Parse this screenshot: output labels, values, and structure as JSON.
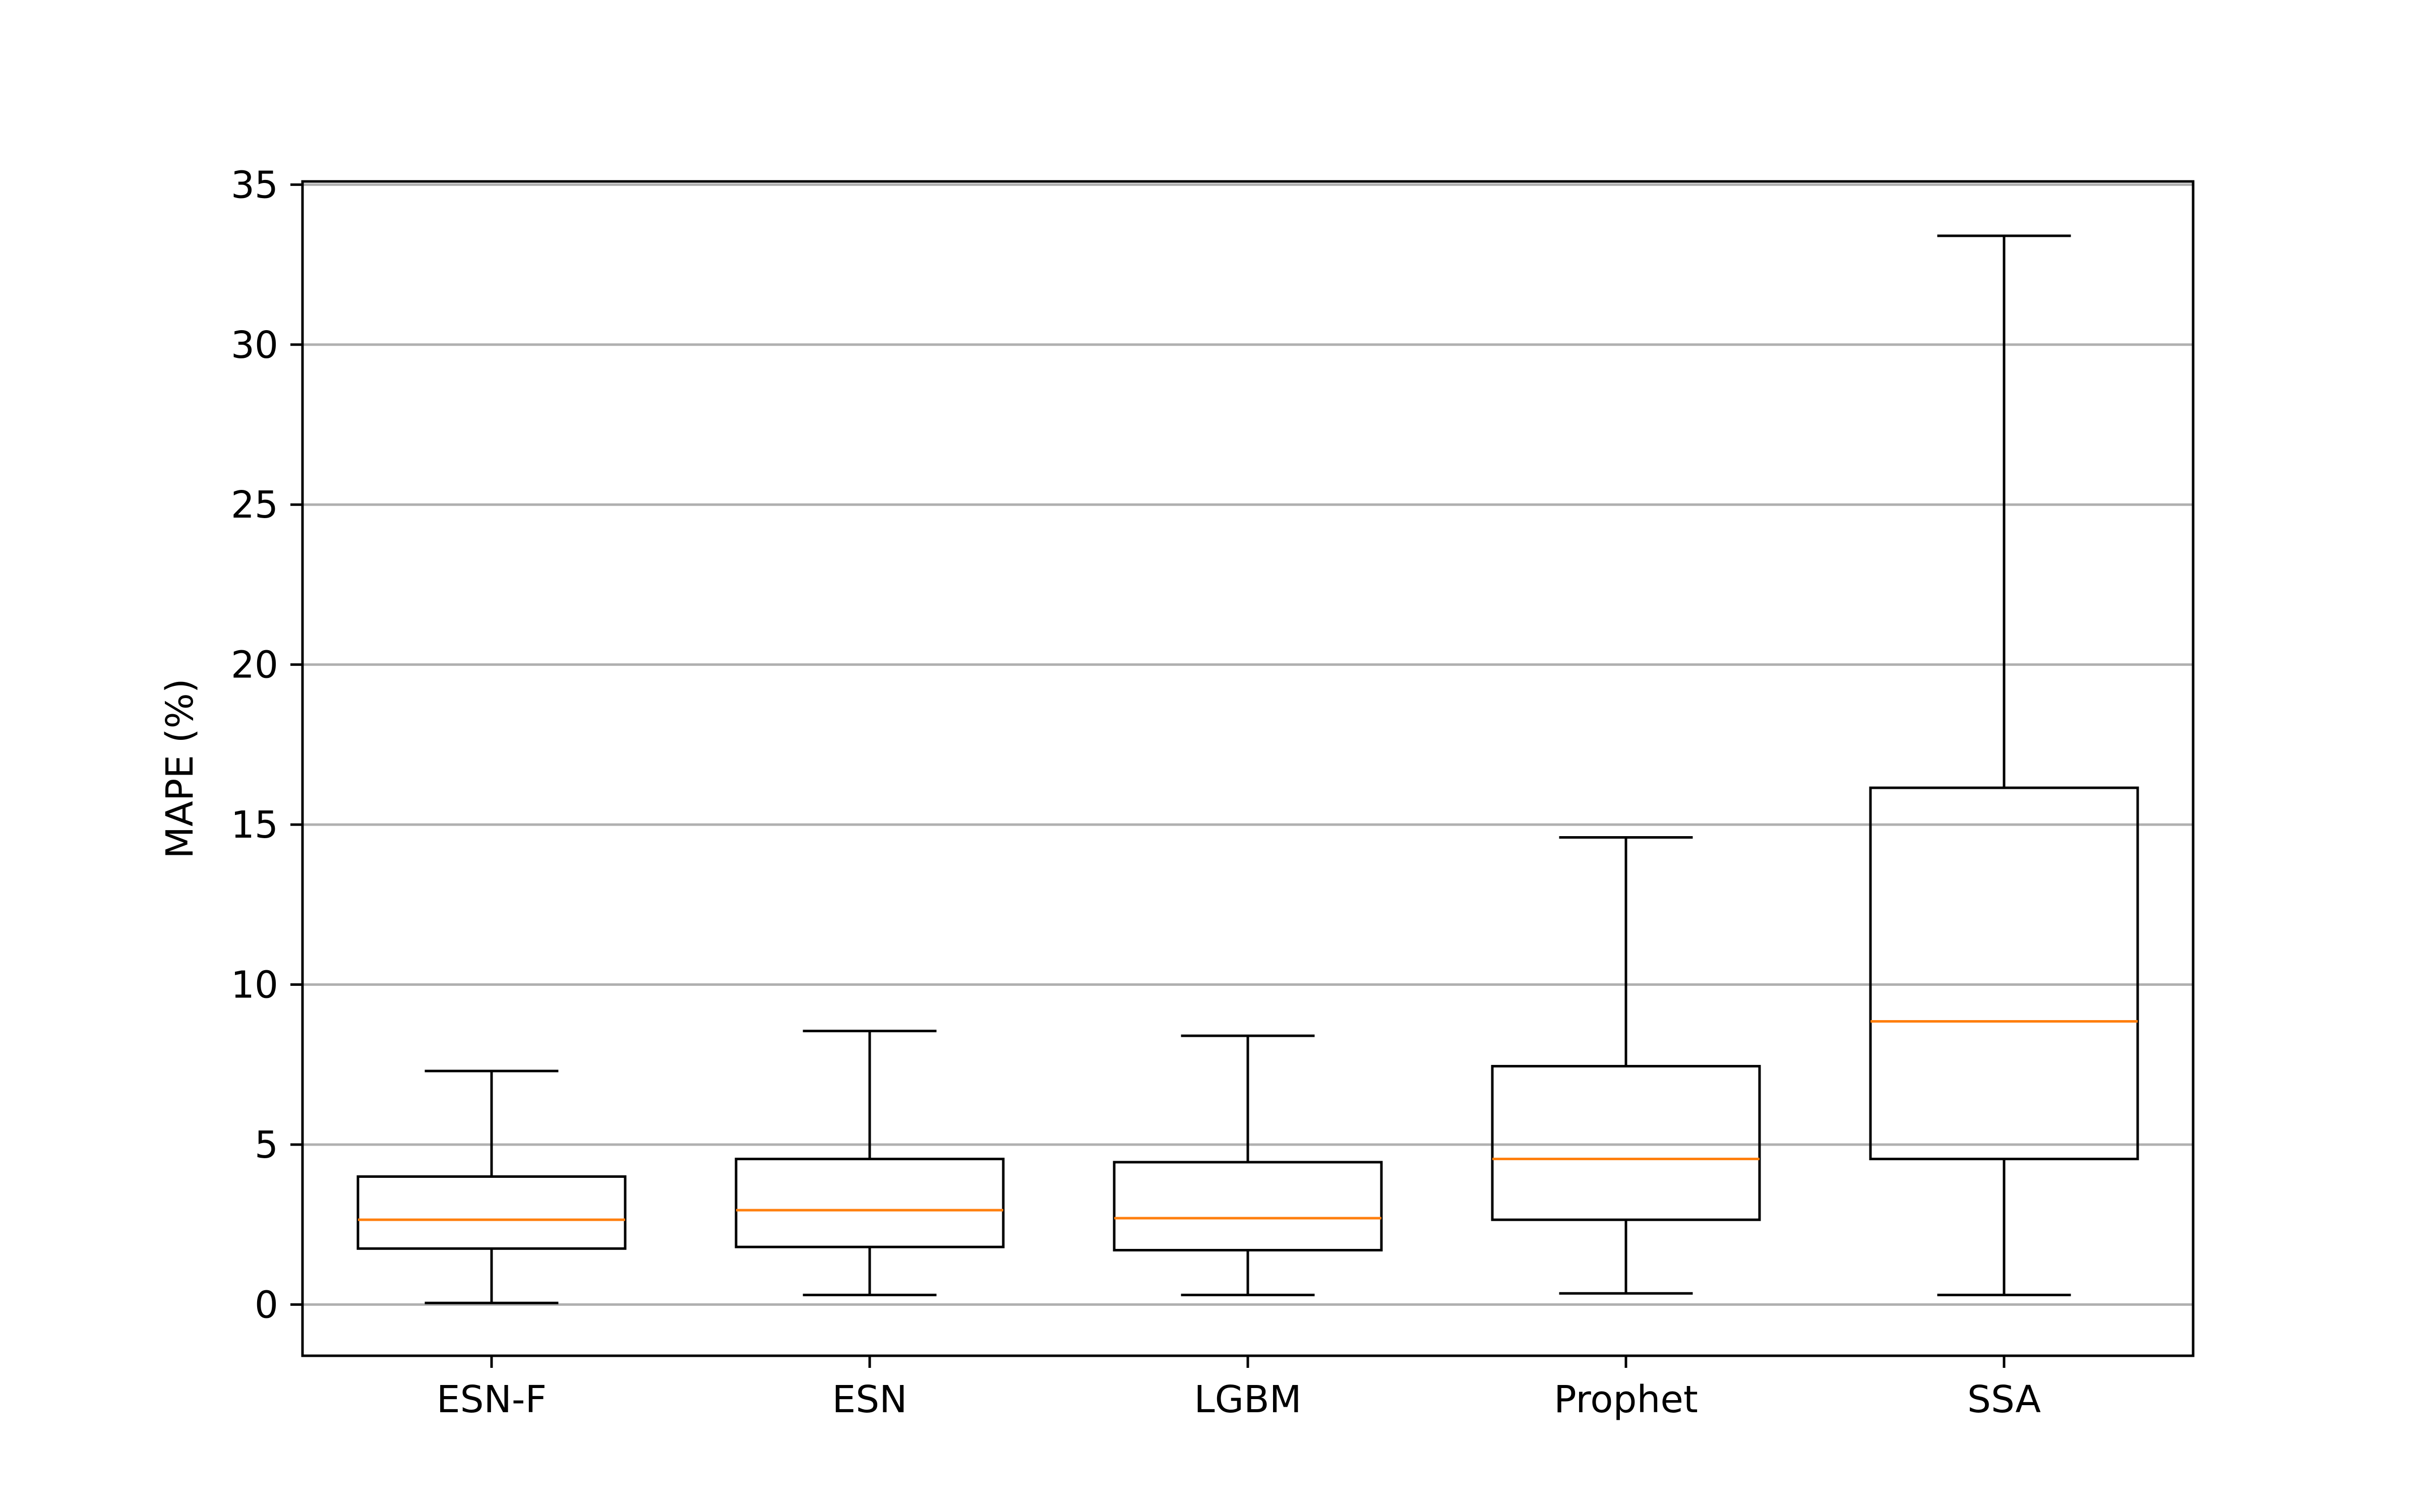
{
  "chart_data": {
    "type": "box",
    "title": "",
    "xlabel": "",
    "ylabel": "MAPE (%)",
    "ylim": [
      -1.6,
      35.1
    ],
    "yticks": [
      0,
      5,
      10,
      15,
      20,
      25,
      30,
      35
    ],
    "grid": {
      "y": true,
      "x": false
    },
    "legend": "none",
    "categories": [
      "ESN-F",
      "ESN",
      "LGBM",
      "Prophet",
      "SSA"
    ],
    "boxes": [
      {
        "name": "ESN-F",
        "whisker_low": 0.05,
        "q1": 1.75,
        "median": 2.65,
        "q3": 4.0,
        "whisker_high": 7.3
      },
      {
        "name": "ESN",
        "whisker_low": 0.3,
        "q1": 1.8,
        "median": 2.95,
        "q3": 4.55,
        "whisker_high": 8.55
      },
      {
        "name": "LGBM",
        "whisker_low": 0.3,
        "q1": 1.7,
        "median": 2.7,
        "q3": 4.45,
        "whisker_high": 8.4
      },
      {
        "name": "Prophet",
        "whisker_low": 0.35,
        "q1": 2.65,
        "median": 4.55,
        "q3": 7.45,
        "whisker_high": 14.6
      },
      {
        "name": "SSA",
        "whisker_low": 0.3,
        "q1": 4.55,
        "median": 8.85,
        "q3": 16.15,
        "whisker_high": 33.4
      }
    ],
    "colors": {
      "box_edge": "#000000",
      "median": "#ff7f0e",
      "grid": "#b0b0b0",
      "frame": "#000000"
    }
  }
}
